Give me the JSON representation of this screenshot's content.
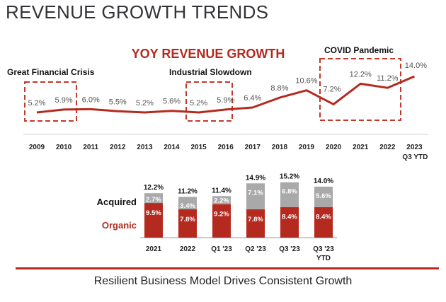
{
  "page": {
    "title": "REVENUE GROWTH TRENDS",
    "footer": "Resilient Business Model Drives Consistent Growth"
  },
  "colors": {
    "accent_red": "#b52a1f",
    "acquired_gray": "#a9a9a9",
    "label_gray": "#555555",
    "axis_gray": "#cccccc"
  },
  "chart_data": [
    {
      "type": "line",
      "title": "YOY REVENUE GROWTH",
      "categories": [
        "2009",
        "2010",
        "2011",
        "2012",
        "2013",
        "2014",
        "2015",
        "2016",
        "2017",
        "2018",
        "2019",
        "2020",
        "2021",
        "2022",
        "2023"
      ],
      "category_sublabels": {
        "2023": "Q3 YTD"
      },
      "values": [
        5.2,
        5.9,
        6.0,
        5.5,
        5.2,
        5.6,
        5.2,
        5.9,
        6.4,
        8.8,
        10.6,
        7.2,
        12.2,
        11.2,
        14.0
      ],
      "data_labels": [
        "5.2%",
        "5.9%",
        "6.0%",
        "5.5%",
        "5.2%",
        "5.6%",
        "5.2%",
        "5.9%",
        "6.4%",
        "8.8%",
        "10.6%",
        "7.2%",
        "12.2%",
        "11.2%",
        "14.0%"
      ],
      "unit": "%",
      "xlabel": "",
      "ylabel": "",
      "grid": false,
      "annotations": [
        {
          "label": "Great Financial Crisis",
          "from": "2009",
          "to": "2010"
        },
        {
          "label": "Industrial Slowdown",
          "from": "2015",
          "to": "2016"
        },
        {
          "label": "COVID Pandemic",
          "from": "2020",
          "to": "2022"
        }
      ]
    },
    {
      "type": "bar",
      "stacked": true,
      "categories": [
        "2021",
        "2022",
        "Q1 '23",
        "Q2 '23",
        "Q3 '23",
        "Q3 '23"
      ],
      "category_sublabels": [
        "",
        "",
        "",
        "",
        "",
        "YTD"
      ],
      "series": [
        {
          "name": "Organic",
          "values": [
            9.5,
            7.8,
            9.2,
            7.8,
            8.4,
            8.4
          ],
          "labels": [
            "9.5%",
            "7.8%",
            "9.2%",
            "7.8%",
            "8.4%",
            "8.4%"
          ]
        },
        {
          "name": "Acquired",
          "values": [
            2.7,
            3.4,
            2.2,
            7.1,
            6.8,
            5.6
          ],
          "labels": [
            "2.7%",
            "3.4%",
            "2.2%",
            "7.1%",
            "6.8%",
            "5.6%"
          ]
        }
      ],
      "totals": [
        12.2,
        11.2,
        11.4,
        14.9,
        15.2,
        14.0
      ],
      "total_labels": [
        "12.2%",
        "11.2%",
        "11.4%",
        "14.9%",
        "15.2%",
        "14.0%"
      ],
      "legend": [
        "Acquired",
        "Organic"
      ],
      "legend_placement": "left",
      "unit": "%"
    }
  ]
}
